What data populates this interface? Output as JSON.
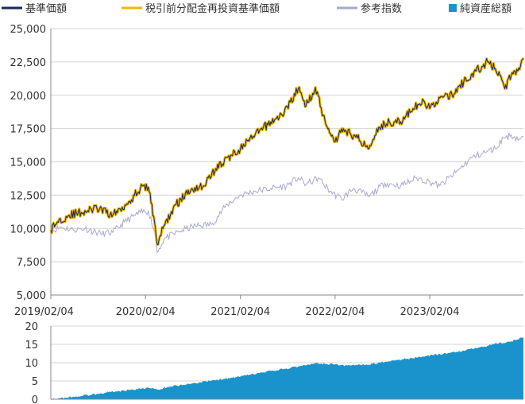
{
  "legend": {
    "items": [
      {
        "label": "基準価額",
        "color": "#1a2a5e",
        "shape": "line"
      },
      {
        "label": "税引前分配金再投資基準価額",
        "color": "#f5b800",
        "shape": "line"
      },
      {
        "label": "参考指数",
        "color": "#a8a8cc",
        "shape": "line"
      },
      {
        "label": "純資産総額",
        "color": "#1a93cc",
        "shape": "square"
      }
    ]
  },
  "chart_data": [
    {
      "type": "line",
      "x_ticks": [
        "2019/02/04",
        "2020/02/04",
        "2021/02/04",
        "2022/02/04",
        "2023/02/04"
      ],
      "y_ticks": [
        "5,000",
        "7,500",
        "10,000",
        "12,500",
        "15,000",
        "17,500",
        "20,000",
        "22,500",
        "25,000"
      ],
      "ylim": [
        5000,
        25000
      ],
      "xlim": [
        "2019-02-04",
        "2024-01-31"
      ],
      "series": [
        {
          "name": "税引前分配金再投資基準価額",
          "color": "#f5b800",
          "points": [
            [
              "2019-02-04",
              9900
            ],
            [
              "2019-03-01",
              10500
            ],
            [
              "2019-04-15",
              11000
            ],
            [
              "2019-06-01",
              11200
            ],
            [
              "2019-08-01",
              11500
            ],
            [
              "2019-10-01",
              11000
            ],
            [
              "2019-12-01",
              12000
            ],
            [
              "2020-01-15",
              13000
            ],
            [
              "2020-02-15",
              13100
            ],
            [
              "2020-03-10",
              10500
            ],
            [
              "2020-03-20",
              8800
            ],
            [
              "2020-04-15",
              10200
            ],
            [
              "2020-06-01",
              11800
            ],
            [
              "2020-08-01",
              13000
            ],
            [
              "2020-09-15",
              13200
            ],
            [
              "2020-11-01",
              14500
            ],
            [
              "2021-01-01",
              15500
            ],
            [
              "2021-02-04",
              16000
            ],
            [
              "2021-04-01",
              17000
            ],
            [
              "2021-06-01",
              18000
            ],
            [
              "2021-07-15",
              18500
            ],
            [
              "2021-08-15",
              19500
            ],
            [
              "2021-09-15",
              20500
            ],
            [
              "2021-10-15",
              19200
            ],
            [
              "2021-11-20",
              20600
            ],
            [
              "2021-12-20",
              18500
            ],
            [
              "2022-01-10",
              17500
            ],
            [
              "2022-02-04",
              16500
            ],
            [
              "2022-03-01",
              17500
            ],
            [
              "2022-05-01",
              16800
            ],
            [
              "2022-06-15",
              16000
            ],
            [
              "2022-07-15",
              17500
            ],
            [
              "2022-09-01",
              18000
            ],
            [
              "2022-10-15",
              18000
            ],
            [
              "2022-12-01",
              19000
            ],
            [
              "2023-01-15",
              19500
            ],
            [
              "2023-02-04",
              19000
            ],
            [
              "2023-03-15",
              19800
            ],
            [
              "2023-05-01",
              20000
            ],
            [
              "2023-06-15",
              21000
            ],
            [
              "2023-08-01",
              21800
            ],
            [
              "2023-09-15",
              22500
            ],
            [
              "2023-10-15",
              22000
            ],
            [
              "2023-11-01",
              21500
            ],
            [
              "2023-11-20",
              20500
            ],
            [
              "2023-12-15",
              21500
            ],
            [
              "2024-01-20",
              22200
            ],
            [
              "2024-01-31",
              22800
            ]
          ]
        },
        {
          "name": "基準価額",
          "color": "#1a2a5e",
          "points": [
            [
              "2019-02-04",
              9900
            ],
            [
              "2019-03-01",
              10500
            ],
            [
              "2019-04-15",
              11000
            ],
            [
              "2019-06-01",
              11200
            ],
            [
              "2019-08-01",
              11500
            ],
            [
              "2019-10-01",
              11000
            ],
            [
              "2019-12-01",
              12000
            ],
            [
              "2020-01-15",
              13000
            ],
            [
              "2020-02-15",
              13100
            ],
            [
              "2020-03-10",
              10500
            ],
            [
              "2020-03-20",
              8800
            ],
            [
              "2020-04-15",
              10200
            ],
            [
              "2020-06-01",
              11800
            ],
            [
              "2020-08-01",
              13000
            ],
            [
              "2020-09-15",
              13200
            ],
            [
              "2020-11-01",
              14500
            ],
            [
              "2021-01-01",
              15500
            ],
            [
              "2021-02-04",
              16000
            ],
            [
              "2021-04-01",
              17000
            ],
            [
              "2021-06-01",
              18000
            ],
            [
              "2021-07-15",
              18500
            ],
            [
              "2021-08-15",
              19500
            ],
            [
              "2021-09-15",
              20500
            ],
            [
              "2021-10-15",
              19200
            ],
            [
              "2021-11-20",
              20600
            ],
            [
              "2021-12-20",
              18500
            ],
            [
              "2022-01-10",
              17500
            ],
            [
              "2022-02-04",
              16500
            ],
            [
              "2022-03-01",
              17500
            ],
            [
              "2022-05-01",
              16800
            ],
            [
              "2022-06-15",
              16000
            ],
            [
              "2022-07-15",
              17500
            ],
            [
              "2022-09-01",
              18000
            ],
            [
              "2022-10-15",
              18000
            ],
            [
              "2022-12-01",
              19000
            ],
            [
              "2023-01-15",
              19500
            ],
            [
              "2023-02-04",
              19000
            ],
            [
              "2023-03-15",
              19800
            ],
            [
              "2023-05-01",
              20000
            ],
            [
              "2023-06-15",
              21000
            ],
            [
              "2023-08-01",
              21800
            ],
            [
              "2023-09-15",
              22500
            ],
            [
              "2023-10-15",
              22000
            ],
            [
              "2023-11-01",
              21500
            ],
            [
              "2023-11-20",
              20500
            ],
            [
              "2023-12-15",
              21500
            ],
            [
              "2024-01-20",
              22200
            ],
            [
              "2024-01-31",
              22800
            ]
          ]
        },
        {
          "name": "参考指数",
          "color": "#a8a8cc",
          "points": [
            [
              "2019-02-04",
              9800
            ],
            [
              "2019-03-15",
              10100
            ],
            [
              "2019-05-01",
              9900
            ],
            [
              "2019-06-15",
              10000
            ],
            [
              "2019-08-15",
              9600
            ],
            [
              "2019-10-01",
              9700
            ],
            [
              "2019-11-15",
              10500
            ],
            [
              "2020-01-15",
              11200
            ],
            [
              "2020-02-15",
              11300
            ],
            [
              "2020-03-10",
              9800
            ],
            [
              "2020-03-20",
              8200
            ],
            [
              "2020-04-15",
              9200
            ],
            [
              "2020-06-15",
              9800
            ],
            [
              "2020-08-15",
              10200
            ],
            [
              "2020-10-15",
              10300
            ],
            [
              "2020-12-15",
              11800
            ],
            [
              "2021-02-04",
              12500
            ],
            [
              "2021-04-01",
              12800
            ],
            [
              "2021-06-01",
              13000
            ],
            [
              "2021-08-01",
              13200
            ],
            [
              "2021-09-15",
              13800
            ],
            [
              "2021-10-15",
              13300
            ],
            [
              "2021-12-01",
              13800
            ],
            [
              "2022-01-15",
              12800
            ],
            [
              "2022-03-01",
              12200
            ],
            [
              "2022-04-15",
              13000
            ],
            [
              "2022-06-15",
              12400
            ],
            [
              "2022-08-15",
              13400
            ],
            [
              "2022-10-15",
              13200
            ],
            [
              "2022-12-15",
              13800
            ],
            [
              "2023-02-04",
              13500
            ],
            [
              "2023-03-15",
              13200
            ],
            [
              "2023-05-15",
              14200
            ],
            [
              "2023-07-15",
              15300
            ],
            [
              "2023-09-15",
              15800
            ],
            [
              "2023-10-15",
              16000
            ],
            [
              "2023-11-15",
              16800
            ],
            [
              "2023-12-15",
              17000
            ],
            [
              "2024-01-15",
              16700
            ],
            [
              "2024-01-31",
              16900
            ]
          ]
        }
      ]
    },
    {
      "type": "area",
      "y_ticks": [
        "0",
        "5",
        "10",
        "15",
        "20"
      ],
      "ylim": [
        0,
        20
      ],
      "series": [
        {
          "name": "純資産総額",
          "color": "#1a93cc",
          "points": [
            [
              "2019-02-04",
              0
            ],
            [
              "2019-03-15",
              0.3
            ],
            [
              "2019-06-01",
              0.9
            ],
            [
              "2019-09-01",
              1.8
            ],
            [
              "2019-12-01",
              2.5
            ],
            [
              "2020-02-15",
              3.1
            ],
            [
              "2020-03-20",
              2.6
            ],
            [
              "2020-05-01",
              3.4
            ],
            [
              "2020-08-01",
              4.3
            ],
            [
              "2020-11-01",
              5.2
            ],
            [
              "2021-02-04",
              6.2
            ],
            [
              "2021-05-01",
              7.3
            ],
            [
              "2021-08-01",
              8.4
            ],
            [
              "2021-11-15",
              9.8
            ],
            [
              "2022-01-15",
              9.6
            ],
            [
              "2022-03-15",
              9.2
            ],
            [
              "2022-06-15",
              9.5
            ],
            [
              "2022-09-15",
              10.6
            ],
            [
              "2022-12-15",
              11.4
            ],
            [
              "2023-03-15",
              12.3
            ],
            [
              "2023-06-15",
              13.3
            ],
            [
              "2023-09-15",
              14.6
            ],
            [
              "2023-10-15",
              15.4
            ],
            [
              "2023-11-20",
              15.3
            ],
            [
              "2023-12-15",
              15.8
            ],
            [
              "2024-01-31",
              17.0
            ]
          ]
        }
      ]
    }
  ]
}
